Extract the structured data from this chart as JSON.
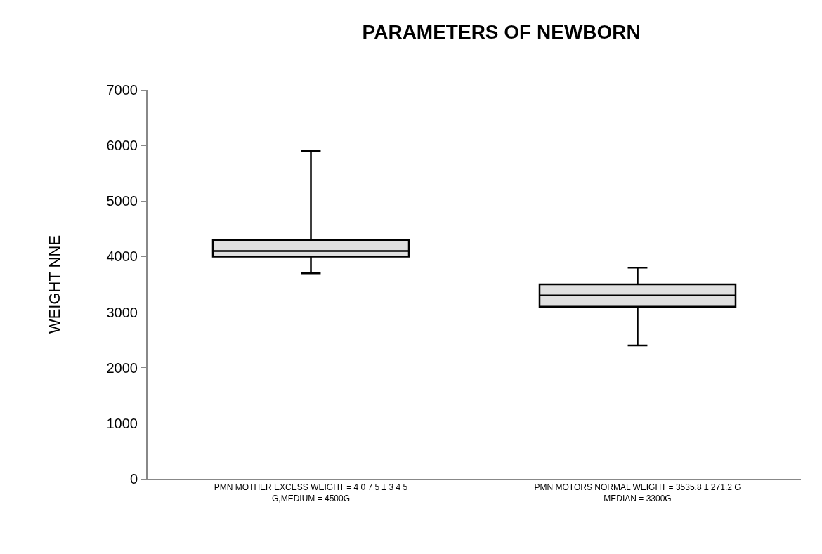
{
  "chart_data": {
    "type": "box",
    "title": "PARAMETERS OF NEWBORN",
    "ylabel": "WEIGHT NNE",
    "categories": [
      "PMN MOTHER EXCESS WEIGHT = 4 0 7 5 ± 3 4 5\nG,MEDIUM = 4500G",
      "PMN MOTORS NORMAL WEIGHT = 3535.8 ± 271.2 G\nMEDIAN = 3300G"
    ],
    "color": "#e0e0e0",
    "boxes": [
      {
        "low": 3700,
        "q1": 4000,
        "median": 4100,
        "q3": 4300,
        "high": 5900
      },
      {
        "low": 2400,
        "q1": 3100,
        "median": 3300,
        "q3": 3500,
        "high": 3800
      }
    ],
    "ylim": [
      0,
      7000
    ],
    "yticks": [
      0,
      1000,
      2000,
      3000,
      4000,
      5000,
      6000,
      7000
    ],
    "grid": false
  }
}
